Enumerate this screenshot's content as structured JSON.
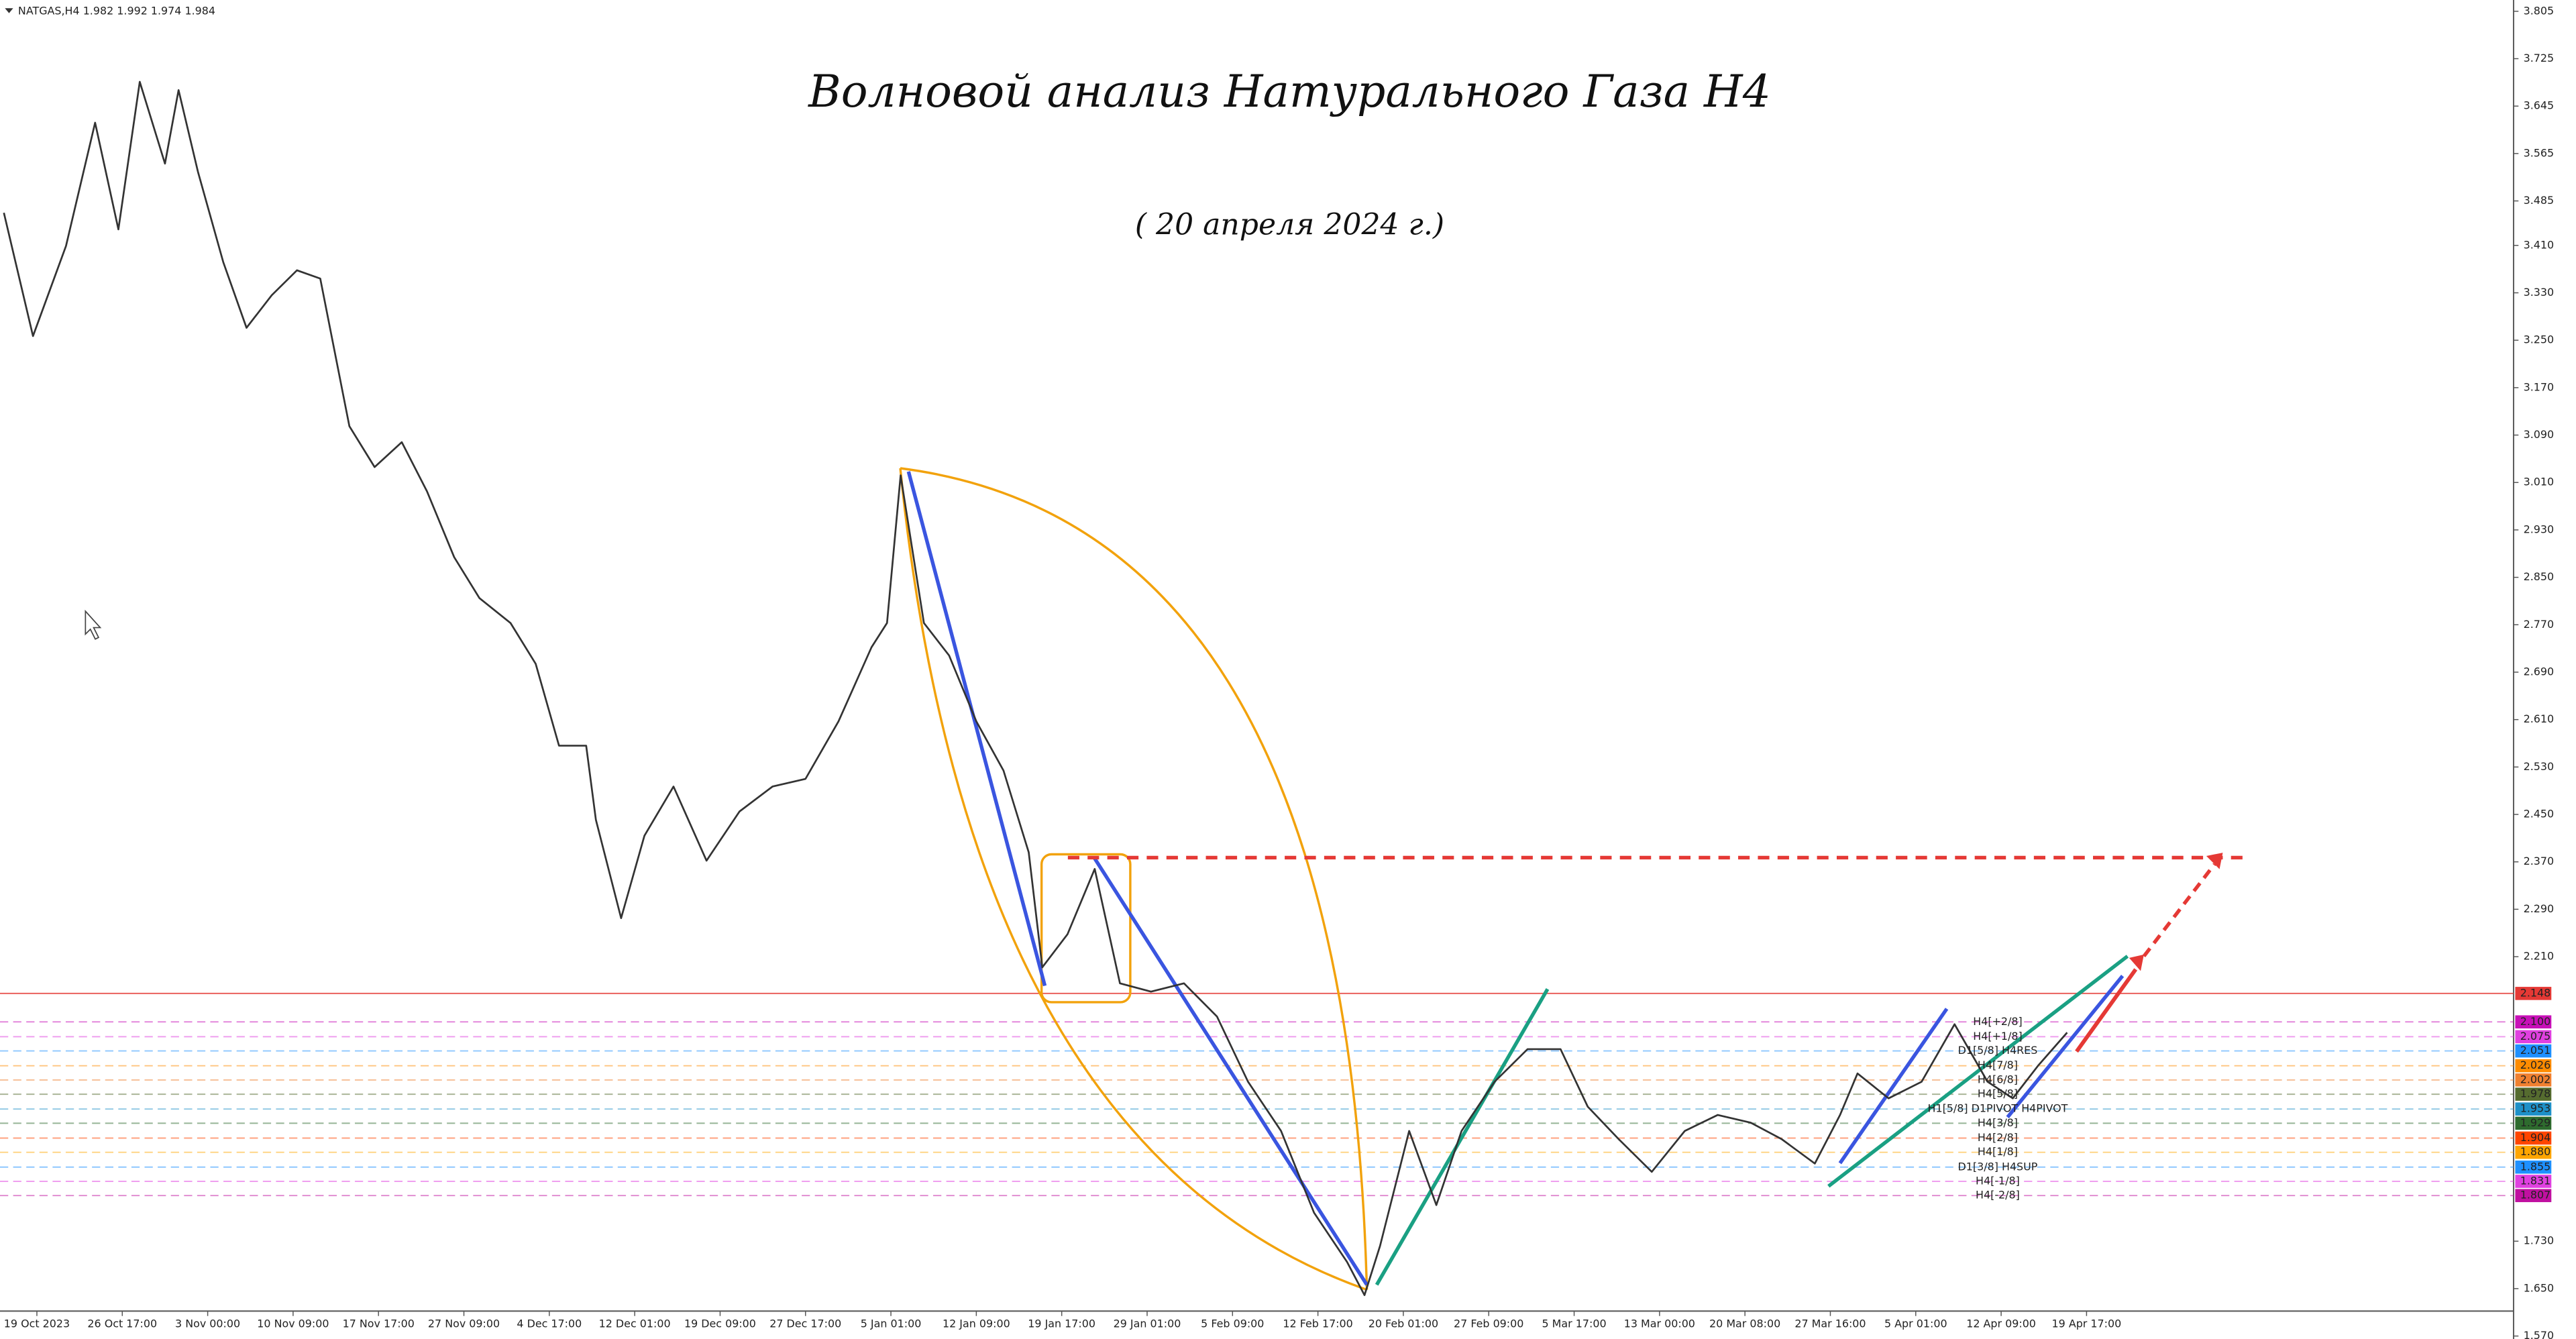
{
  "chart_data": {
    "type": "line",
    "header": "NATGAS,H4  1.982 1.992 1.974 1.984",
    "title": "Волновой анализ Натурального Газа Н4",
    "subtitle": "( 20 апреля 2024 г.)",
    "color": "#333333",
    "x": [
      -17,
      -2,
      15,
      30,
      42,
      53,
      66,
      73,
      83,
      96,
      108,
      121,
      134,
      146,
      161,
      174,
      188,
      201,
      215,
      228,
      244,
      257,
      269,
      283,
      288,
      301,
      313,
      328,
      345,
      362,
      379,
      396,
      413,
      430,
      438,
      445,
      457,
      470,
      484,
      498,
      511,
      518,
      531,
      545,
      558,
      574,
      591,
      608,
      624,
      641,
      658,
      675,
      684,
      692,
      707,
      721,
      734,
      751,
      768,
      785,
      799,
      815,
      832,
      849,
      866,
      883,
      899,
      916,
      929,
      938,
      954,
      971,
      988,
      1005,
      1018,
      1031,
      1046
    ],
    "values": [
      3.465,
      3.257,
      3.409,
      3.617,
      3.437,
      3.686,
      3.548,
      3.672,
      3.534,
      3.382,
      3.271,
      3.326,
      3.368,
      3.354,
      3.105,
      3.036,
      3.078,
      2.995,
      2.884,
      2.815,
      2.773,
      2.704,
      2.566,
      2.566,
      2.441,
      2.275,
      2.414,
      2.497,
      2.372,
      2.455,
      2.497,
      2.51,
      2.607,
      2.732,
      2.773,
      3.022,
      2.773,
      2.718,
      2.607,
      2.524,
      2.386,
      2.192,
      2.248,
      2.358,
      2.165,
      2.151,
      2.165,
      2.109,
      1.999,
      1.916,
      1.778,
      1.695,
      1.639,
      1.722,
      1.916,
      1.791,
      1.916,
      1.999,
      2.054,
      2.054,
      1.957,
      1.902,
      1.847,
      1.916,
      1.943,
      1.93,
      1.902,
      1.861,
      1.943,
      2.013,
      1.971,
      1.999,
      2.096,
      1.999,
      1.971,
      2.026,
      2.082
    ],
    "xlim": [
      -19,
      1276
    ],
    "ylim": [
      1.565,
      3.824
    ],
    "xticks": [
      {
        "value": 0,
        "label": "19 Oct 2023"
      },
      {
        "value": 44,
        "label": "26 Oct 17:00"
      },
      {
        "value": 88,
        "label": "3 Nov 00:00"
      },
      {
        "value": 132,
        "label": "10 Nov 09:00"
      },
      {
        "value": 176,
        "label": "17 Nov 17:00"
      },
      {
        "value": 220,
        "label": "27 Nov 09:00"
      },
      {
        "value": 264,
        "label": "4 Dec 17:00"
      },
      {
        "value": 308,
        "label": "12 Dec 01:00"
      },
      {
        "value": 352,
        "label": "19 Dec 09:00"
      },
      {
        "value": 396,
        "label": "27 Dec 17:00"
      },
      {
        "value": 440,
        "label": "5 Jan 01:00"
      },
      {
        "value": 484,
        "label": "12 Jan 09:00"
      },
      {
        "value": 528,
        "label": "19 Jan 17:00"
      },
      {
        "value": 572,
        "label": "29 Jan 01:00"
      },
      {
        "value": 616,
        "label": "5 Feb 09:00"
      },
      {
        "value": 660,
        "label": "12 Feb 17:00"
      },
      {
        "value": 704,
        "label": "20 Feb 01:00"
      },
      {
        "value": 748,
        "label": "27 Feb 09:00"
      },
      {
        "value": 792,
        "label": "5 Mar 17:00"
      },
      {
        "value": 836,
        "label": "13 Mar 00:00"
      },
      {
        "value": 880,
        "label": "20 Mar 08:00"
      },
      {
        "value": 924,
        "label": "27 Mar 16:00"
      },
      {
        "value": 968,
        "label": "5 Apr 01:00"
      },
      {
        "value": 1012,
        "label": "12 Apr 09:00"
      },
      {
        "value": 1056,
        "label": "19 Apr 17:00"
      }
    ],
    "yticks": [
      {
        "value": 3.805,
        "label": "3.805"
      },
      {
        "value": 3.725,
        "label": "3.725"
      },
      {
        "value": 3.645,
        "label": "3.645"
      },
      {
        "value": 3.565,
        "label": "3.565"
      },
      {
        "value": 3.485,
        "label": "3.485"
      },
      {
        "value": 3.41,
        "label": "3.410"
      },
      {
        "value": 3.33,
        "label": "3.330"
      },
      {
        "value": 3.25,
        "label": "3.250"
      },
      {
        "value": 3.17,
        "label": "3.170"
      },
      {
        "value": 3.09,
        "label": "3.090"
      },
      {
        "value": 3.01,
        "label": "3.010"
      },
      {
        "value": 2.93,
        "label": "2.930"
      },
      {
        "value": 2.85,
        "label": "2.850"
      },
      {
        "value": 2.77,
        "label": "2.770"
      },
      {
        "value": 2.69,
        "label": "2.690"
      },
      {
        "value": 2.61,
        "label": "2.610"
      },
      {
        "value": 2.53,
        "label": "2.530"
      },
      {
        "value": 2.45,
        "label": "2.450"
      },
      {
        "value": 2.37,
        "label": "2.370"
      },
      {
        "value": 2.29,
        "label": "2.290"
      },
      {
        "value": 2.21,
        "label": "2.210"
      },
      {
        "value": 1.73,
        "label": "1.730"
      },
      {
        "value": 1.65,
        "label": "1.650"
      },
      {
        "value": 1.57,
        "label": "1.570"
      }
    ],
    "levels": [
      {
        "value": 2.148,
        "label": "2.148",
        "color": "#e53935"
      },
      {
        "value": 2.1,
        "label": "2.100",
        "color": "#c810b8",
        "tag": "H4[+2/8]"
      },
      {
        "value": 2.075,
        "label": "2.075",
        "color": "#e040e0",
        "tag": "H4[+1/8]"
      },
      {
        "value": 2.051,
        "label": "2.051",
        "color": "#1e90ff",
        "tag": "D1[5/8] H4RES"
      },
      {
        "value": 2.026,
        "label": "2.026",
        "color": "#ff8c00",
        "tag": "H4[7/8]"
      },
      {
        "value": 2.002,
        "label": "2.002",
        "color": "#f08030",
        "tag": "H4[6/8]"
      },
      {
        "value": 1.978,
        "label": "1.978",
        "color": "#556b2f",
        "tag": "H4[5/8]"
      },
      {
        "value": 1.953,
        "label": "1.953",
        "color": "#1e90c8",
        "tag": "H1[5/8] D1PIVOT H4PIVOT"
      },
      {
        "value": 1.929,
        "label": "1.929",
        "color": "#2e6b2e",
        "tag": "H4[3/8]"
      },
      {
        "value": 1.904,
        "label": "1.904",
        "color": "#ff4500",
        "tag": "H4[2/8]"
      },
      {
        "value": 1.88,
        "label": "1.880",
        "color": "#ffa500",
        "tag": "H4[1/8]"
      },
      {
        "value": 1.855,
        "label": "1.855",
        "color": "#1e90ff",
        "tag": "D1[3/8] H4SUP"
      },
      {
        "value": 1.831,
        "label": "1.831",
        "color": "#e040e0",
        "tag": "H4[-1/8]"
      },
      {
        "value": 1.807,
        "label": "1.807",
        "color": "#c010a0",
        "tag": "H4[-2/8]"
      }
    ]
  }
}
